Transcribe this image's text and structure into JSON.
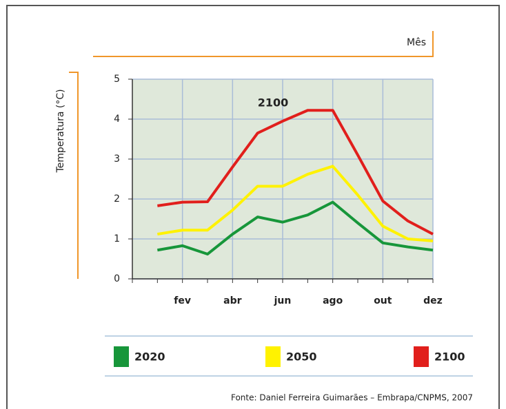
{
  "chart_data": {
    "type": "line",
    "x_label": "Mês",
    "y_label": "Temperatura (°C)",
    "annotation": "2100",
    "categories": [
      null,
      "fev",
      null,
      "abr",
      null,
      "jun",
      null,
      "ago",
      null,
      "out",
      null,
      "dez"
    ],
    "series": [
      {
        "name": "2020",
        "color": "#17963a",
        "values": [
          0.72,
          0.83,
          0.62,
          1.12,
          1.55,
          1.42,
          1.6,
          1.92,
          1.4,
          0.9,
          0.8,
          0.72
        ]
      },
      {
        "name": "2050",
        "color": "#fff200",
        "values": [
          1.12,
          1.22,
          1.22,
          1.72,
          2.32,
          2.32,
          2.62,
          2.82,
          2.1,
          1.32,
          1.0,
          0.95
        ]
      },
      {
        "name": "2100",
        "color": "#e11f1c",
        "values": [
          1.83,
          1.92,
          1.93,
          2.8,
          3.65,
          3.95,
          4.22,
          4.22,
          3.1,
          1.95,
          1.45,
          1.12
        ]
      }
    ],
    "ylim": [
      0,
      5
    ],
    "yticks": [
      0,
      1,
      2,
      3,
      4,
      5
    ],
    "grid": true,
    "source": "Fonte:  Daniel Ferreira Guimarães – Embrapa/CNPMS, 2007"
  }
}
